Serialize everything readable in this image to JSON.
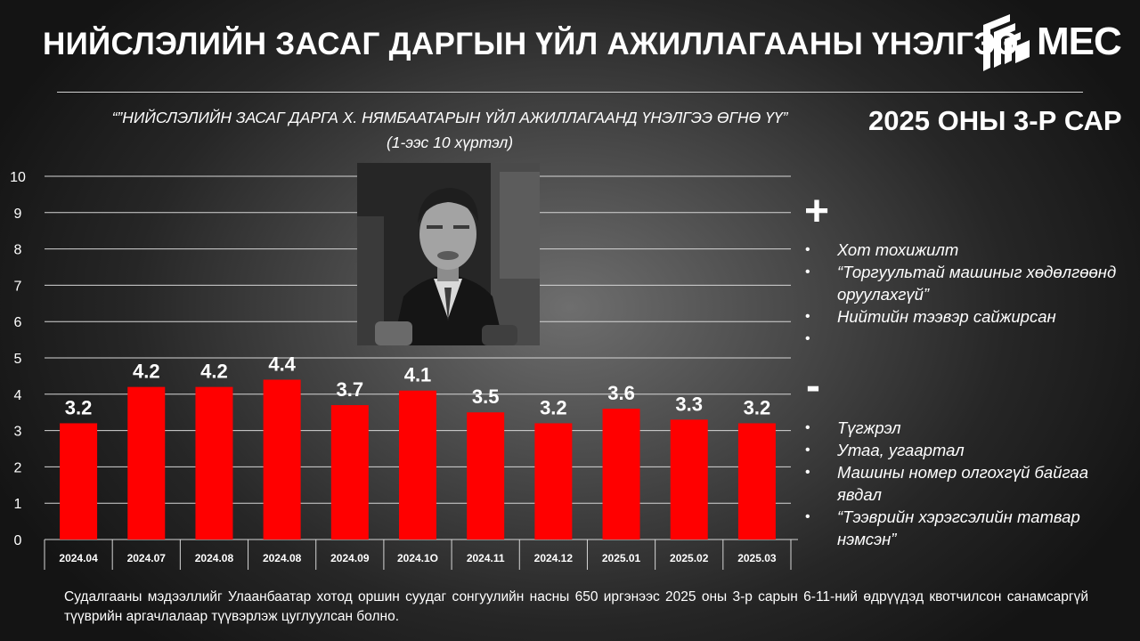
{
  "header": {
    "title": "НИЙСЛЭЛИЙН ЗАСАГ ДАРГЫН ҮЙЛ АЖИЛЛАГААНЫ ҮНЭЛГЭЭ",
    "logo_text": "MEC"
  },
  "question": "“”НИЙСЛЭЛИЙН ЗАСАГ ДАРГА Х. НЯМБААТАРЫН ҮЙЛ АЖИЛЛАГААНД ҮНЭЛГЭЭ ӨГНӨ ҮҮ”",
  "scale_note": "(1-ээс 10 хүртэл)",
  "period": "2025 ОНЫ 3-Р САР",
  "chart_data": {
    "type": "bar",
    "categories": [
      "2024.04",
      "2024.07",
      "2024.08",
      "2024.08",
      "2024.09",
      "2024.1O",
      "2024.11",
      "2024.12",
      "2025.01",
      "2025.02",
      "2025.03"
    ],
    "values": [
      3.2,
      4.2,
      4.2,
      4.4,
      3.7,
      4.1,
      3.5,
      3.2,
      3.6,
      3.3,
      3.2
    ],
    "value_labels": [
      "3.2",
      "4.2",
      "4.2",
      "4.4",
      "3.7",
      "4.1",
      "3.5",
      "3.2",
      "3.6",
      "3.3",
      "3.2"
    ],
    "ylim": [
      0,
      10
    ],
    "yticks": [
      0,
      1,
      2,
      3,
      4,
      5,
      6,
      7,
      8,
      9,
      10
    ],
    "grid": true,
    "bar_color": "#ff0000",
    "xlabel": "",
    "ylabel": ""
  },
  "positives": {
    "sign": "+",
    "items": [
      "Хот тохижилт",
      "“Торгуультай машиныг хөдөлгөөнд оруулахгүй”",
      "Нийтийн тээвэр сайжирсан",
      ""
    ]
  },
  "negatives": {
    "sign": "-",
    "items": [
      "Түгжрэл",
      "Утаа, угаартал",
      "Машины номер олгохгүй байгаа явдал",
      "“Тээврийн хэрэгсэлийн татвар нэмсэн”"
    ]
  },
  "footer": "Судалгааны мэдээллийг Улаанбаатар хотод оршин суудаг сонгуулийн насны 650 иргэнээс 2025 оны 3-р сарын 6-11-ний өдрүүдэд квотчилсон санамсаргүй түүврийн аргачлалаар түүвэрлэж цуглуулсан болно.",
  "colors": {
    "background": "#262626",
    "bar": "#ff0000",
    "text": "#ffffff"
  }
}
